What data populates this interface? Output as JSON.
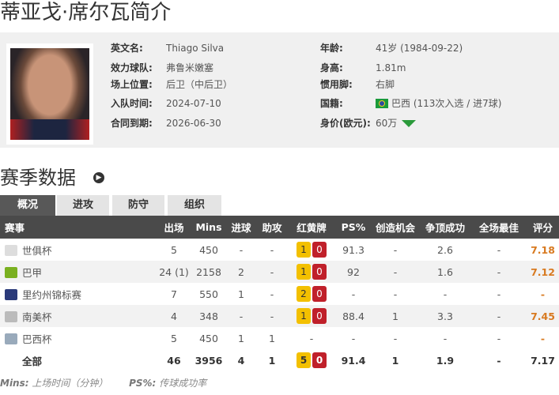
{
  "title": "蒂亚戈·席尔瓦简介",
  "profile": {
    "english_name_label": "英文名:",
    "english_name": "Thiago Silva",
    "club_label": "效力球队:",
    "club": "弗鲁米嫩塞",
    "position_label": "场上位置:",
    "position": "后卫（中后卫）",
    "joined_label": "入队时间:",
    "joined": "2024-07-10",
    "contract_label": "合同到期:",
    "contract": "2026-06-30",
    "age_label": "年龄:",
    "age": "41岁 (1984-09-22)",
    "height_label": "身高:",
    "height": "1.81m",
    "foot_label": "惯用脚:",
    "foot": "右脚",
    "nationality_label": "国籍:",
    "nationality": "巴西 (113次入选 / 进7球)",
    "value_label": "身价(欧元):",
    "value": "60万",
    "value_trend": "down"
  },
  "season": {
    "title": "赛季数据",
    "tabs": [
      "概况",
      "进攻",
      "防守",
      "组织"
    ],
    "headers": [
      "赛事",
      "出场",
      "Mins",
      "进球",
      "助攻",
      "红黄牌",
      "PS%",
      "创造机会",
      "争顶成功",
      "全场最佳",
      "评分"
    ],
    "rows": [
      {
        "comp": "世俱杯",
        "icon": "fifa-icon",
        "apps": "5",
        "mins": "450",
        "goals": "-",
        "assists": "-",
        "yellow": "1",
        "red": "0",
        "ps": "91.3",
        "chances": "-",
        "aerials": "2.6",
        "motm": "-",
        "rating": "7.18"
      },
      {
        "comp": "巴甲",
        "icon": "brasileirao-icon",
        "apps": "24 (1)",
        "mins": "2158",
        "goals": "2",
        "assists": "-",
        "yellow": "1",
        "red": "0",
        "ps": "92",
        "chances": "-",
        "aerials": "1.6",
        "motm": "-",
        "rating": "7.12"
      },
      {
        "comp": "里约州锦标赛",
        "icon": "carioca-icon",
        "apps": "7",
        "mins": "550",
        "goals": "1",
        "assists": "-",
        "yellow": "2",
        "red": "0",
        "ps": "-",
        "chances": "-",
        "aerials": "-",
        "motm": "-",
        "rating": "-"
      },
      {
        "comp": "南美杯",
        "icon": "sudamericana-icon",
        "apps": "4",
        "mins": "348",
        "goals": "-",
        "assists": "-",
        "yellow": "1",
        "red": "0",
        "ps": "88.4",
        "chances": "1",
        "aerials": "3.3",
        "motm": "-",
        "rating": "7.45"
      },
      {
        "comp": "巴西杯",
        "icon": "copa-brasil-icon",
        "apps": "5",
        "mins": "450",
        "goals": "1",
        "assists": "1",
        "yellow": "-",
        "red": "",
        "ps": "-",
        "chances": "-",
        "aerials": "-",
        "motm": "-",
        "rating": "-"
      }
    ],
    "total": {
      "comp": "全部",
      "apps": "46",
      "mins": "3956",
      "goals": "4",
      "assists": "1",
      "yellow": "5",
      "red": "0",
      "ps": "91.4",
      "chances": "1",
      "aerials": "1.9",
      "motm": "-",
      "rating": "7.17"
    },
    "footnote_mins_key": "Mins:",
    "footnote_mins": "上场时间（分钟）",
    "footnote_ps_key": "PS%:",
    "footnote_ps": "传球成功率"
  },
  "colors": {
    "header_bg": "#4a4a4a",
    "yellow_card": "#f3c000",
    "red_card": "#c0202a",
    "rating": "#d87a20",
    "value_down": "#2a9a3a"
  }
}
